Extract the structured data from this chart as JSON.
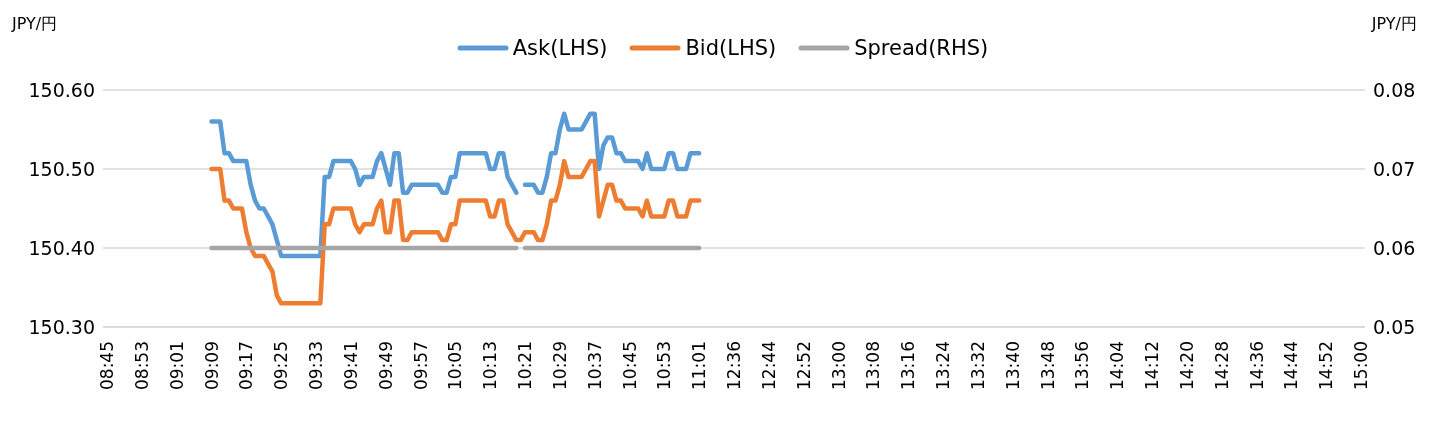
{
  "chart_data": {
    "type": "line",
    "ylabel": "JPY/円",
    "y2label": "JPY/円",
    "categories": [
      "08:45",
      null,
      null,
      null,
      null,
      null,
      null,
      null,
      "08:53",
      null,
      null,
      null,
      null,
      null,
      null,
      null,
      "09:01",
      null,
      null,
      null,
      null,
      null,
      null,
      null,
      "09:09",
      null,
      null,
      null,
      null,
      null,
      null,
      null,
      "09:17",
      null,
      null,
      null,
      null,
      null,
      null,
      null,
      "09:25",
      null,
      null,
      null,
      null,
      null,
      null,
      null,
      "09:33",
      null,
      null,
      null,
      null,
      null,
      null,
      null,
      "09:41",
      null,
      null,
      null,
      null,
      null,
      null,
      null,
      "09:49",
      null,
      null,
      null,
      null,
      null,
      null,
      null,
      "09:57",
      null,
      null,
      null,
      null,
      null,
      null,
      null,
      "10:05",
      null,
      null,
      null,
      null,
      null,
      null,
      null,
      "10:13",
      null,
      null,
      null,
      null,
      null,
      null,
      null,
      "10:21",
      null,
      null,
      null,
      null,
      null,
      null,
      null,
      "10:29",
      null,
      null,
      null,
      null,
      null,
      null,
      null,
      "10:37",
      null,
      null,
      null,
      null,
      null,
      null,
      null,
      "10:45",
      null,
      null,
      null,
      null,
      null,
      null,
      null,
      "10:53",
      null,
      null,
      null,
      null,
      null,
      null,
      null,
      "11:01",
      null,
      null,
      null,
      null,
      null,
      null,
      null,
      "12:36",
      null,
      null,
      null,
      null,
      null,
      null,
      null,
      "12:44",
      null,
      null,
      null,
      null,
      null,
      null,
      null,
      "12:52",
      null,
      null,
      null,
      null,
      null,
      null,
      null,
      "13:00",
      null,
      null,
      null,
      null,
      null,
      null,
      null,
      "13:08",
      null,
      null,
      null,
      null,
      null,
      null,
      null,
      "13:16",
      null,
      null,
      null,
      null,
      null,
      null,
      null,
      "13:24",
      null,
      null,
      null,
      null,
      null,
      null,
      null,
      "13:32",
      null,
      null,
      null,
      null,
      null,
      null,
      null,
      "13:40",
      null,
      null,
      null,
      null,
      null,
      null,
      null,
      "13:48",
      null,
      null,
      null,
      null,
      null,
      null,
      null,
      "13:56",
      null,
      null,
      null,
      null,
      null,
      null,
      null,
      "14:04",
      null,
      null,
      null,
      null,
      null,
      null,
      null,
      "14:12",
      null,
      null,
      null,
      null,
      null,
      null,
      null,
      "14:20",
      null,
      null,
      null,
      null,
      null,
      null,
      null,
      "14:28",
      null,
      null,
      null,
      null,
      null,
      null,
      null,
      "14:36",
      null,
      null,
      null,
      null,
      null,
      null,
      null,
      "14:44",
      null,
      null,
      null,
      null,
      null,
      null,
      null,
      "14:52",
      null,
      null,
      null,
      null,
      null,
      null,
      null,
      "15:00"
    ],
    "series": [
      {
        "name": "Ask(LHS)",
        "color": "#5b9bd5",
        "values": [
          null,
          null,
          null,
          null,
          null,
          null,
          null,
          null,
          null,
          null,
          null,
          null,
          null,
          null,
          null,
          null,
          null,
          null,
          null,
          null,
          null,
          null,
          null,
          null,
          150.56,
          150.56,
          150.56,
          150.52,
          150.52,
          150.51,
          150.51,
          150.51,
          150.51,
          150.48,
          150.46,
          150.45,
          150.45,
          150.44,
          150.43,
          150.41,
          150.39,
          150.39,
          150.39,
          150.39,
          150.39,
          150.39,
          150.39,
          150.39,
          150.39,
          150.39,
          150.49,
          150.49,
          150.51,
          150.51,
          150.51,
          150.51,
          150.51,
          150.5,
          150.48,
          150.49,
          150.49,
          150.49,
          150.51,
          150.52,
          150.5,
          150.48,
          150.52,
          150.52,
          150.47,
          150.47,
          150.48,
          150.48,
          150.48,
          150.48,
          150.48,
          150.48,
          150.48,
          150.47,
          150.47,
          150.49,
          150.49,
          150.52,
          150.52,
          150.52,
          150.52,
          150.52,
          150.52,
          150.52,
          150.5,
          150.5,
          150.52,
          150.52,
          150.49,
          150.48,
          150.47,
          null,
          150.48,
          150.48,
          150.48,
          150.47,
          150.47,
          150.49,
          150.52,
          150.52,
          150.55,
          150.57,
          150.55,
          150.55,
          150.55,
          150.55,
          150.56,
          150.57,
          150.57,
          150.5,
          150.53,
          150.54,
          150.54,
          150.52,
          150.52,
          150.51,
          150.51,
          150.51,
          150.51,
          150.5,
          150.52,
          150.5,
          150.5,
          150.5,
          150.5,
          150.52,
          150.52,
          150.5,
          150.5,
          150.5,
          150.52,
          150.52,
          150.52,
          null,
          null,
          null,
          null,
          null,
          null,
          null,
          null,
          null,
          null,
          null,
          null,
          null,
          null,
          null,
          null,
          null,
          null,
          null,
          null,
          null,
          null,
          null,
          null,
          null,
          null,
          null,
          null,
          null,
          null,
          null,
          null,
          null,
          null,
          null,
          null,
          null,
          null,
          null,
          null,
          null,
          null,
          null,
          null,
          null,
          null,
          null,
          null,
          null,
          null,
          null,
          null,
          null,
          null,
          null,
          null,
          null,
          null,
          null,
          null,
          null,
          null,
          null,
          null,
          null,
          null,
          null,
          null,
          null,
          null,
          null,
          null,
          null,
          null,
          null,
          null,
          null,
          null,
          null,
          null,
          null,
          null,
          null,
          null,
          null,
          null,
          null,
          null,
          null,
          null,
          null,
          null,
          null,
          null,
          null,
          null,
          null,
          null,
          null,
          null,
          null,
          null,
          null,
          null,
          null,
          null,
          null,
          null,
          null,
          null,
          null,
          null,
          null,
          null,
          null,
          null,
          null,
          null,
          null,
          null,
          null,
          null,
          null,
          null,
          null,
          null,
          null,
          null,
          null,
          null,
          null,
          null,
          null,
          null,
          null,
          null,
          null,
          null,
          null,
          null,
          null,
          null,
          null,
          null,
          null,
          null,
          null,
          null,
          null,
          null,
          null,
          null
        ]
      },
      {
        "name": "Bid(LHS)",
        "color": "#ed7d31",
        "values": [
          null,
          null,
          null,
          null,
          null,
          null,
          null,
          null,
          null,
          null,
          null,
          null,
          null,
          null,
          null,
          null,
          null,
          null,
          null,
          null,
          null,
          null,
          null,
          null,
          150.5,
          150.5,
          150.5,
          150.46,
          150.46,
          150.45,
          150.45,
          150.45,
          150.42,
          150.4,
          150.39,
          150.39,
          150.39,
          150.38,
          150.37,
          150.34,
          150.33,
          150.33,
          150.33,
          150.33,
          150.33,
          150.33,
          150.33,
          150.33,
          150.33,
          150.33,
          150.43,
          150.43,
          150.45,
          150.45,
          150.45,
          150.45,
          150.45,
          150.43,
          150.42,
          150.43,
          150.43,
          150.43,
          150.45,
          150.46,
          150.42,
          150.42,
          150.46,
          150.46,
          150.41,
          150.41,
          150.42,
          150.42,
          150.42,
          150.42,
          150.42,
          150.42,
          150.42,
          150.41,
          150.41,
          150.43,
          150.43,
          150.46,
          150.46,
          150.46,
          150.46,
          150.46,
          150.46,
          150.46,
          150.44,
          150.44,
          150.46,
          150.46,
          150.43,
          150.42,
          150.41,
          150.41,
          150.42,
          150.42,
          150.42,
          150.41,
          150.41,
          150.43,
          150.46,
          150.46,
          150.48,
          150.51,
          150.49,
          150.49,
          150.49,
          150.49,
          150.5,
          150.51,
          150.51,
          150.44,
          150.46,
          150.48,
          150.48,
          150.46,
          150.46,
          150.45,
          150.45,
          150.45,
          150.45,
          150.44,
          150.46,
          150.44,
          150.44,
          150.44,
          150.44,
          150.46,
          150.46,
          150.44,
          150.44,
          150.44,
          150.46,
          150.46,
          150.46,
          null,
          null,
          null,
          null,
          null,
          null,
          null,
          null,
          null,
          null,
          null,
          null,
          null,
          null,
          null,
          null,
          null,
          null,
          null,
          null,
          null,
          null,
          null,
          null,
          null,
          null,
          null,
          null,
          null,
          null,
          null,
          null,
          null,
          null,
          null,
          null,
          null,
          null,
          null,
          null,
          null,
          null,
          null,
          null,
          null,
          null,
          null,
          null,
          null,
          null,
          null,
          null,
          null,
          null,
          null,
          null,
          null,
          null,
          null,
          null,
          null,
          null,
          null,
          null,
          null,
          null,
          null,
          null,
          null,
          null,
          null,
          null,
          null,
          null,
          null,
          null,
          null,
          null,
          null,
          null,
          null,
          null,
          null,
          null,
          null,
          null,
          null,
          null,
          null,
          null,
          null,
          null,
          null,
          null,
          null,
          null,
          null,
          null,
          null,
          null,
          null,
          null,
          null,
          null,
          null,
          null,
          null,
          null,
          null,
          null,
          null,
          null,
          null,
          null,
          null,
          null,
          null,
          null,
          null,
          null,
          null,
          null,
          null,
          null,
          null,
          null,
          null,
          null,
          null,
          null,
          null,
          null,
          null,
          null,
          null,
          null,
          null,
          null,
          null,
          null,
          null,
          null,
          null,
          null,
          null,
          null,
          null,
          null,
          null,
          null,
          null,
          null
        ]
      },
      {
        "name": "Spread(RHS)",
        "color": "#a5a5a5",
        "axis": "y2",
        "values": [
          null,
          null,
          null,
          null,
          null,
          null,
          null,
          null,
          null,
          null,
          null,
          null,
          null,
          null,
          null,
          null,
          null,
          null,
          null,
          null,
          null,
          null,
          null,
          null,
          0.06,
          0.06,
          0.06,
          0.06,
          0.06,
          0.06,
          0.06,
          0.06,
          0.06,
          0.06,
          0.06,
          0.06,
          0.06,
          0.06,
          0.06,
          0.06,
          0.06,
          0.06,
          0.06,
          0.06,
          0.06,
          0.06,
          0.06,
          0.06,
          0.06,
          0.06,
          0.06,
          0.06,
          0.06,
          0.06,
          0.06,
          0.06,
          0.06,
          0.06,
          0.06,
          0.06,
          0.06,
          0.06,
          0.06,
          0.06,
          0.06,
          0.06,
          0.06,
          0.06,
          0.06,
          0.06,
          0.06,
          0.06,
          0.06,
          0.06,
          0.06,
          0.06,
          0.06,
          0.06,
          0.06,
          0.06,
          0.06,
          0.06,
          0.06,
          0.06,
          0.06,
          0.06,
          0.06,
          0.06,
          0.06,
          0.06,
          0.06,
          0.06,
          0.06,
          0.06,
          0.06,
          null,
          0.06,
          0.06,
          0.06,
          0.06,
          0.06,
          0.06,
          0.06,
          0.06,
          0.06,
          0.06,
          0.06,
          0.06,
          0.06,
          0.06,
          0.06,
          0.06,
          0.06,
          0.06,
          0.06,
          0.06,
          0.06,
          0.06,
          0.06,
          0.06,
          0.06,
          0.06,
          0.06,
          0.06,
          0.06,
          0.06,
          0.06,
          0.06,
          0.06,
          0.06,
          0.06,
          0.06,
          0.06,
          0.06,
          0.06,
          0.06,
          0.06,
          null,
          null,
          null,
          null,
          null,
          null,
          null,
          null,
          null,
          null,
          null,
          null,
          null,
          null,
          null,
          null,
          null,
          null,
          null,
          null,
          null,
          null,
          null,
          null,
          null,
          null,
          null,
          null,
          null,
          null,
          null,
          null,
          null,
          null,
          null,
          null,
          null,
          null,
          null,
          null,
          null,
          null,
          null,
          null,
          null,
          null,
          null,
          null,
          null,
          null,
          null,
          null,
          null,
          null,
          null,
          null,
          null,
          null,
          null,
          null,
          null,
          null,
          null,
          null,
          null,
          null,
          null,
          null,
          null,
          null,
          null,
          null,
          null,
          null,
          null,
          null,
          null,
          null,
          null,
          null,
          null,
          null,
          null,
          null,
          null,
          null,
          null,
          null,
          null,
          null,
          null,
          null,
          null,
          null,
          null,
          null,
          null,
          null,
          null,
          null,
          null,
          null,
          null,
          null,
          null,
          null,
          null,
          null,
          null,
          null,
          null,
          null,
          null,
          null,
          null,
          null,
          null,
          null,
          null,
          null,
          null,
          null,
          null,
          null,
          null,
          null,
          null,
          null,
          null,
          null,
          null,
          null,
          null,
          null,
          null,
          null,
          null,
          null,
          null,
          null,
          null,
          null,
          null,
          null,
          null,
          null,
          null,
          null,
          null,
          null,
          null,
          null
        ]
      }
    ],
    "ylim": [
      150.3,
      150.6
    ],
    "yticks": [
      {
        "value": 150.3,
        "label": "150.30"
      },
      {
        "value": 150.4,
        "label": "150.40"
      },
      {
        "value": 150.5,
        "label": "150.50"
      },
      {
        "value": 150.6,
        "label": "150.60"
      }
    ],
    "y2lim": [
      0.05,
      0.08
    ],
    "y2ticks": [
      0.05,
      0.06,
      0.07,
      0.08
    ],
    "grid": "y",
    "legend": "top",
    "marker": "none",
    "line_style": "solid"
  }
}
